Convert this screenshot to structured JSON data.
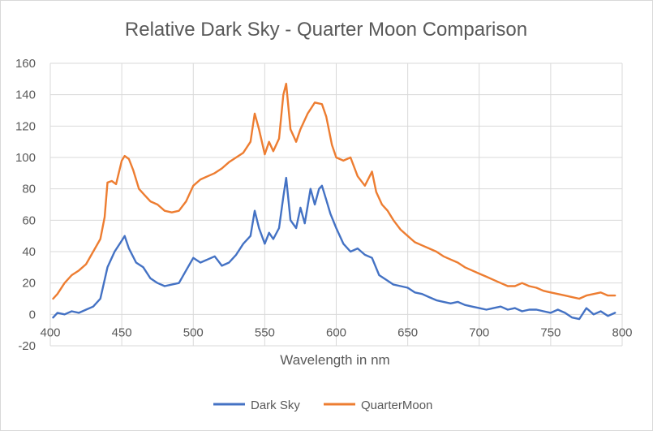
{
  "chart_data": {
    "type": "line",
    "title": "Relative Dark Sky - Quarter Moon Comparison",
    "xlabel": "Wavelength in nm",
    "ylabel": "",
    "xlim": [
      400,
      800
    ],
    "ylim": [
      -20,
      160
    ],
    "x_ticks": [
      400,
      450,
      500,
      550,
      600,
      650,
      700,
      750,
      800
    ],
    "y_ticks": [
      -20,
      0,
      20,
      40,
      60,
      80,
      100,
      120,
      140,
      160
    ],
    "grid": true,
    "legend_position": "bottom",
    "series": [
      {
        "name": "Dark Sky",
        "color": "#4472c4",
        "points": [
          [
            402,
            -2
          ],
          [
            405,
            1
          ],
          [
            410,
            0
          ],
          [
            415,
            2
          ],
          [
            420,
            1
          ],
          [
            425,
            3
          ],
          [
            430,
            5
          ],
          [
            435,
            10
          ],
          [
            440,
            30
          ],
          [
            445,
            40
          ],
          [
            450,
            47
          ],
          [
            452,
            50
          ],
          [
            455,
            42
          ],
          [
            460,
            33
          ],
          [
            465,
            30
          ],
          [
            470,
            23
          ],
          [
            475,
            20
          ],
          [
            480,
            18
          ],
          [
            485,
            19
          ],
          [
            490,
            20
          ],
          [
            495,
            28
          ],
          [
            500,
            36
          ],
          [
            505,
            33
          ],
          [
            510,
            35
          ],
          [
            515,
            37
          ],
          [
            520,
            31
          ],
          [
            525,
            33
          ],
          [
            530,
            38
          ],
          [
            535,
            45
          ],
          [
            540,
            50
          ],
          [
            543,
            66
          ],
          [
            546,
            55
          ],
          [
            550,
            45
          ],
          [
            553,
            52
          ],
          [
            556,
            48
          ],
          [
            560,
            55
          ],
          [
            563,
            75
          ],
          [
            565,
            87
          ],
          [
            568,
            60
          ],
          [
            572,
            55
          ],
          [
            575,
            68
          ],
          [
            578,
            58
          ],
          [
            582,
            80
          ],
          [
            585,
            70
          ],
          [
            588,
            80
          ],
          [
            590,
            82
          ],
          [
            593,
            73
          ],
          [
            596,
            64
          ],
          [
            600,
            55
          ],
          [
            605,
            45
          ],
          [
            610,
            40
          ],
          [
            615,
            42
          ],
          [
            620,
            38
          ],
          [
            625,
            36
          ],
          [
            630,
            25
          ],
          [
            635,
            22
          ],
          [
            640,
            19
          ],
          [
            645,
            18
          ],
          [
            650,
            17
          ],
          [
            655,
            14
          ],
          [
            660,
            13
          ],
          [
            665,
            11
          ],
          [
            670,
            9
          ],
          [
            675,
            8
          ],
          [
            680,
            7
          ],
          [
            685,
            8
          ],
          [
            690,
            6
          ],
          [
            695,
            5
          ],
          [
            700,
            4
          ],
          [
            705,
            3
          ],
          [
            710,
            4
          ],
          [
            715,
            5
          ],
          [
            720,
            3
          ],
          [
            725,
            4
          ],
          [
            730,
            2
          ],
          [
            735,
            3
          ],
          [
            740,
            3
          ],
          [
            745,
            2
          ],
          [
            750,
            1
          ],
          [
            755,
            3
          ],
          [
            760,
            1
          ],
          [
            765,
            -2
          ],
          [
            770,
            -3
          ],
          [
            775,
            4
          ],
          [
            780,
            0
          ],
          [
            785,
            2
          ],
          [
            790,
            -1
          ],
          [
            795,
            1
          ]
        ]
      },
      {
        "name": "QuarterMoon",
        "color": "#ed7d31",
        "points": [
          [
            402,
            10
          ],
          [
            405,
            13
          ],
          [
            410,
            20
          ],
          [
            415,
            25
          ],
          [
            420,
            28
          ],
          [
            425,
            32
          ],
          [
            430,
            40
          ],
          [
            435,
            48
          ],
          [
            438,
            62
          ],
          [
            440,
            84
          ],
          [
            443,
            85
          ],
          [
            446,
            83
          ],
          [
            450,
            98
          ],
          [
            452,
            101
          ],
          [
            455,
            99
          ],
          [
            458,
            92
          ],
          [
            462,
            80
          ],
          [
            466,
            76
          ],
          [
            470,
            72
          ],
          [
            475,
            70
          ],
          [
            480,
            66
          ],
          [
            485,
            65
          ],
          [
            490,
            66
          ],
          [
            495,
            72
          ],
          [
            500,
            82
          ],
          [
            505,
            86
          ],
          [
            510,
            88
          ],
          [
            515,
            90
          ],
          [
            520,
            93
          ],
          [
            525,
            97
          ],
          [
            530,
            100
          ],
          [
            535,
            103
          ],
          [
            540,
            110
          ],
          [
            543,
            128
          ],
          [
            546,
            118
          ],
          [
            550,
            102
          ],
          [
            553,
            110
          ],
          [
            556,
            104
          ],
          [
            560,
            112
          ],
          [
            563,
            140
          ],
          [
            565,
            147
          ],
          [
            568,
            118
          ],
          [
            572,
            110
          ],
          [
            575,
            118
          ],
          [
            580,
            128
          ],
          [
            585,
            135
          ],
          [
            590,
            134
          ],
          [
            593,
            126
          ],
          [
            597,
            108
          ],
          [
            600,
            100
          ],
          [
            605,
            98
          ],
          [
            610,
            100
          ],
          [
            615,
            88
          ],
          [
            620,
            82
          ],
          [
            625,
            91
          ],
          [
            628,
            78
          ],
          [
            632,
            70
          ],
          [
            636,
            66
          ],
          [
            640,
            60
          ],
          [
            645,
            54
          ],
          [
            650,
            50
          ],
          [
            655,
            46
          ],
          [
            660,
            44
          ],
          [
            665,
            42
          ],
          [
            670,
            40
          ],
          [
            675,
            37
          ],
          [
            680,
            35
          ],
          [
            685,
            33
          ],
          [
            690,
            30
          ],
          [
            695,
            28
          ],
          [
            700,
            26
          ],
          [
            705,
            24
          ],
          [
            710,
            22
          ],
          [
            715,
            20
          ],
          [
            720,
            18
          ],
          [
            725,
            18
          ],
          [
            730,
            20
          ],
          [
            735,
            18
          ],
          [
            740,
            17
          ],
          [
            745,
            15
          ],
          [
            750,
            14
          ],
          [
            755,
            13
          ],
          [
            760,
            12
          ],
          [
            765,
            11
          ],
          [
            770,
            10
          ],
          [
            775,
            12
          ],
          [
            780,
            13
          ],
          [
            785,
            14
          ],
          [
            790,
            12
          ],
          [
            795,
            12
          ]
        ]
      }
    ]
  }
}
